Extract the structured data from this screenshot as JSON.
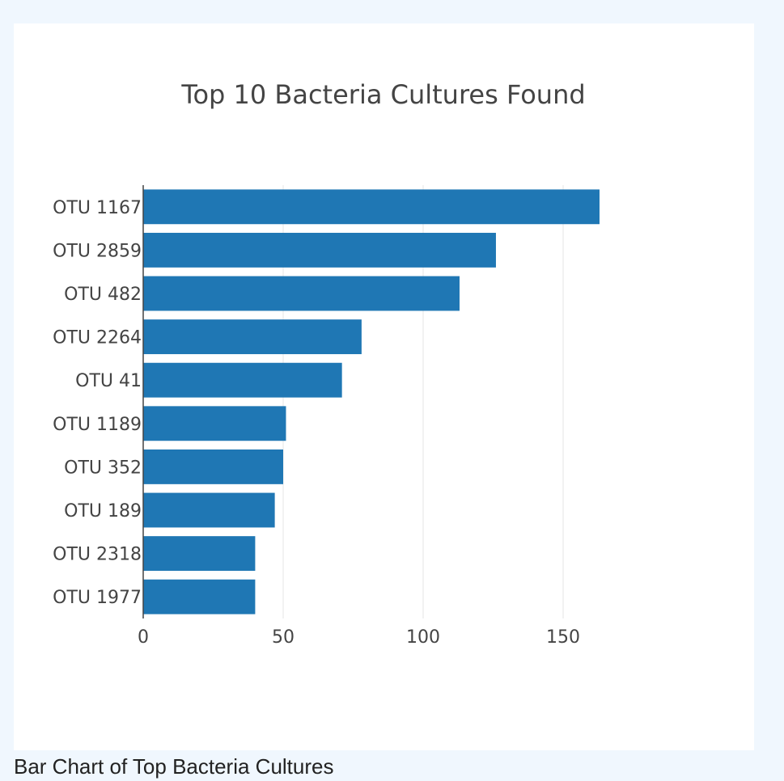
{
  "caption": "Bar Chart of Top Bacteria Cultures",
  "colors": {
    "page_background": "#f0f7fe",
    "card_background": "#ffffff",
    "bar": "#1f77b4",
    "grid": "#e6e6e6",
    "axis_line": "#444444",
    "text": "#444444"
  },
  "chart_data": {
    "type": "bar",
    "orientation": "horizontal",
    "title": "Top 10 Bacteria Cultures Found",
    "xlabel": "",
    "ylabel": "",
    "categories": [
      "OTU 1167",
      "OTU 2859",
      "OTU 482",
      "OTU 2264",
      "OTU 41",
      "OTU 1189",
      "OTU 352",
      "OTU 189",
      "OTU 2318",
      "OTU 1977"
    ],
    "values": [
      163,
      126,
      113,
      78,
      71,
      51,
      50,
      47,
      40,
      40
    ],
    "xlim": [
      0,
      210
    ],
    "xticks": [
      0,
      50,
      100,
      150
    ],
    "xtick_labels": [
      "0",
      "50",
      "100",
      "150"
    ],
    "grid": true,
    "legend": "none"
  }
}
